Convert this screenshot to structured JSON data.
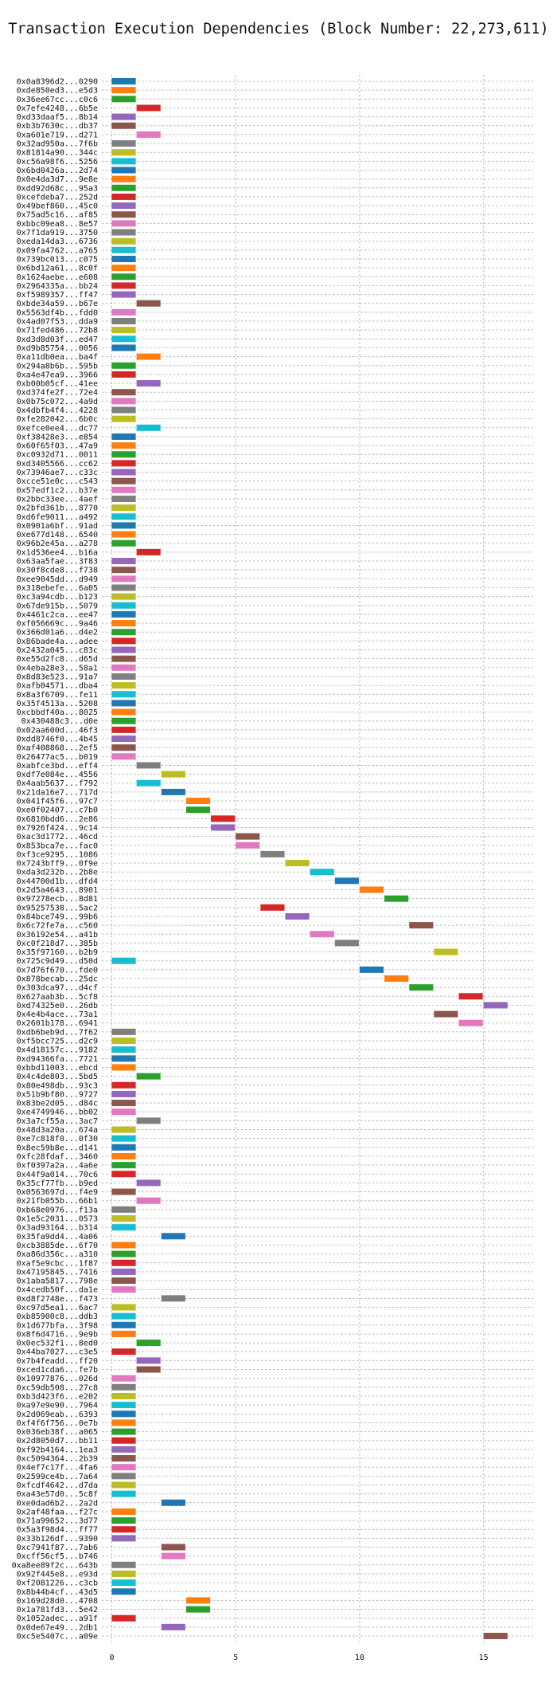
{
  "chart_data": {
    "type": "bar",
    "title": "Transaction Execution Dependencies (Block Number: 22,273,611)",
    "xlabel": "",
    "ylabel": "",
    "xlim": [
      -0.4,
      17
    ],
    "xticks": [
      0,
      5,
      10,
      15
    ],
    "grid": true,
    "palette": [
      "#1f77b4",
      "#ff7f0e",
      "#2ca02c",
      "#d62728",
      "#9467bd",
      "#8c564b",
      "#e377c2",
      "#7f7f7f",
      "#bcbd22",
      "#17becf"
    ],
    "transactions": [
      {
        "label": "0x0a8396d2...0290",
        "start": 0,
        "end": 1
      },
      {
        "label": "0xde850ed3...e5d3",
        "start": 0,
        "end": 1
      },
      {
        "label": "0x36ee67cc...c0c6",
        "start": 0,
        "end": 1
      },
      {
        "label": "0x7efe4248...6b5e",
        "start": 1,
        "end": 2
      },
      {
        "label": "0xd33daaf5...8b14",
        "start": 0,
        "end": 1
      },
      {
        "label": "0xb3b7630c...db37",
        "start": 0,
        "end": 1
      },
      {
        "label": "0xa601e719...d271",
        "start": 1,
        "end": 2
      },
      {
        "label": "0x32ad950a...7f6b",
        "start": 0,
        "end": 1
      },
      {
        "label": "0x81814a90...344c",
        "start": 0,
        "end": 1
      },
      {
        "label": "0xc56a98f6...5256",
        "start": 0,
        "end": 1
      },
      {
        "label": "0x6bd0426a...2d74",
        "start": 0,
        "end": 1
      },
      {
        "label": "0x0e4da3d7...9e8e",
        "start": 0,
        "end": 1
      },
      {
        "label": "0xdd92d68c...95a3",
        "start": 0,
        "end": 1
      },
      {
        "label": "0xcefdeba7...252d",
        "start": 0,
        "end": 1
      },
      {
        "label": "0x49bef860...45c0",
        "start": 0,
        "end": 1
      },
      {
        "label": "0x75ad5c16...af85",
        "start": 0,
        "end": 1
      },
      {
        "label": "0xbbc09ea8...8e57",
        "start": 0,
        "end": 1
      },
      {
        "label": "0x7f1da919...3750",
        "start": 0,
        "end": 1
      },
      {
        "label": "0xeda14da3...6736",
        "start": 0,
        "end": 1
      },
      {
        "label": "0x09fa4762...a765",
        "start": 0,
        "end": 1
      },
      {
        "label": "0x739bc013...c075",
        "start": 0,
        "end": 1
      },
      {
        "label": "0x6bd12a61...8c0f",
        "start": 0,
        "end": 1
      },
      {
        "label": "0x1624aebe...e608",
        "start": 0,
        "end": 1
      },
      {
        "label": "0x2964335a...bb24",
        "start": 0,
        "end": 1
      },
      {
        "label": "0xf5989357...ff47",
        "start": 0,
        "end": 1
      },
      {
        "label": "0xbde34a59...b67e",
        "start": 1,
        "end": 2
      },
      {
        "label": "0x5563df4b...fdd0",
        "start": 0,
        "end": 1
      },
      {
        "label": "0x4ad07f53...dda9",
        "start": 0,
        "end": 1
      },
      {
        "label": "0x71fed486...72b8",
        "start": 0,
        "end": 1
      },
      {
        "label": "0xd3d8d03f...ed47",
        "start": 0,
        "end": 1
      },
      {
        "label": "0xd9b85754...0056",
        "start": 0,
        "end": 1
      },
      {
        "label": "0xa11db0ea...ba4f",
        "start": 1,
        "end": 2
      },
      {
        "label": "0x294a8b6b...595b",
        "start": 0,
        "end": 1
      },
      {
        "label": "0xa4e47ea9...3966",
        "start": 0,
        "end": 1
      },
      {
        "label": "0xb00b05cf...41ee",
        "start": 1,
        "end": 2
      },
      {
        "label": "0xd374fe2f...72e4",
        "start": 0,
        "end": 1
      },
      {
        "label": "0x0b75c072...4a9d",
        "start": 0,
        "end": 1
      },
      {
        "label": "0x4dbfb4f4...4228",
        "start": 0,
        "end": 1
      },
      {
        "label": "0xfe282042...6b0c",
        "start": 0,
        "end": 1
      },
      {
        "label": "0xefce0ee4...dc77",
        "start": 1,
        "end": 2
      },
      {
        "label": "0xf38428e3...e854",
        "start": 0,
        "end": 1
      },
      {
        "label": "0x60f65f03...47a9",
        "start": 0,
        "end": 1
      },
      {
        "label": "0xc0932d71...0011",
        "start": 0,
        "end": 1
      },
      {
        "label": "0xd3405566...cc62",
        "start": 0,
        "end": 1
      },
      {
        "label": "0x73946ae7...c33c",
        "start": 0,
        "end": 1
      },
      {
        "label": "0xcce51e0c...c543",
        "start": 0,
        "end": 1
      },
      {
        "label": "0x57edf1c2...b37e",
        "start": 0,
        "end": 1
      },
      {
        "label": "0x2bbc33ee...4aef",
        "start": 0,
        "end": 1
      },
      {
        "label": "0x2bfd361b...8770",
        "start": 0,
        "end": 1
      },
      {
        "label": "0xd6fe9011...a492",
        "start": 0,
        "end": 1
      },
      {
        "label": "0x0901a6bf...91ad",
        "start": 0,
        "end": 1
      },
      {
        "label": "0xe677d148...6540",
        "start": 0,
        "end": 1
      },
      {
        "label": "0x96b2e45a...a278",
        "start": 0,
        "end": 1
      },
      {
        "label": "0x1d536ee4...b16a",
        "start": 1,
        "end": 2
      },
      {
        "label": "0x63aa5fae...3f83",
        "start": 0,
        "end": 1
      },
      {
        "label": "0x30f8cde8...f738",
        "start": 0,
        "end": 1
      },
      {
        "label": "0xee9045dd...d949",
        "start": 0,
        "end": 1
      },
      {
        "label": "0x318ebefe...6a05",
        "start": 0,
        "end": 1
      },
      {
        "label": "0xc3a94cdb...b123",
        "start": 0,
        "end": 1
      },
      {
        "label": "0x67de915b...5079",
        "start": 0,
        "end": 1
      },
      {
        "label": "0x4461c2ca...ee47",
        "start": 0,
        "end": 1
      },
      {
        "label": "0xf056669c...9a46",
        "start": 0,
        "end": 1
      },
      {
        "label": "0x366d01a6...d4e2",
        "start": 0,
        "end": 1
      },
      {
        "label": "0x86bade4a...adee",
        "start": 0,
        "end": 1
      },
      {
        "label": "0x2432a045...c83c",
        "start": 0,
        "end": 1
      },
      {
        "label": "0xe55d2fc8...d65d",
        "start": 0,
        "end": 1
      },
      {
        "label": "0x4eba28e3...58a1",
        "start": 0,
        "end": 1
      },
      {
        "label": "0x8d83e523...91a7",
        "start": 0,
        "end": 1
      },
      {
        "label": "0xafb04571...dba4",
        "start": 0,
        "end": 1
      },
      {
        "label": "0x8a3f6709...fe11",
        "start": 0,
        "end": 1
      },
      {
        "label": "0x35f4513a...5208",
        "start": 0,
        "end": 1
      },
      {
        "label": "0xcbbdf40a...8025",
        "start": 0,
        "end": 1
      },
      {
        "label": "0x430488c3...d0e",
        "start": 0,
        "end": 1
      },
      {
        "label": "0x02aa600d...46f3",
        "start": 0,
        "end": 1
      },
      {
        "label": "0xdd8746f0...4b45",
        "start": 0,
        "end": 1
      },
      {
        "label": "0xaf408868...2ef5",
        "start": 0,
        "end": 1
      },
      {
        "label": "0x26477ac5...b019",
        "start": 0,
        "end": 1
      },
      {
        "label": "0xabfce3bd...eff4",
        "start": 1,
        "end": 2
      },
      {
        "label": "0xdf7e084e...4556",
        "start": 2,
        "end": 3
      },
      {
        "label": "0x4aab5637...f792",
        "start": 1,
        "end": 2
      },
      {
        "label": "0x21da16e7...717d",
        "start": 2,
        "end": 3
      },
      {
        "label": "0x041f45f6...97c7",
        "start": 3,
        "end": 4
      },
      {
        "label": "0xe0f02407...c7b0",
        "start": 3,
        "end": 4
      },
      {
        "label": "0x6810bdd6...2e86",
        "start": 4,
        "end": 5
      },
      {
        "label": "0x7926f424...9c14",
        "start": 4,
        "end": 5
      },
      {
        "label": "0xac3d1772...46cd",
        "start": 5,
        "end": 6
      },
      {
        "label": "0x853bca7e...fac0",
        "start": 5,
        "end": 6
      },
      {
        "label": "0xf3ce9295...1086",
        "start": 6,
        "end": 7
      },
      {
        "label": "0x7243bff9...0f9e",
        "start": 7,
        "end": 8
      },
      {
        "label": "0xda3d232b...2b8e",
        "start": 8,
        "end": 9
      },
      {
        "label": "0x44700d1b...dfd4",
        "start": 9,
        "end": 10
      },
      {
        "label": "0x2d5a4643...8901",
        "start": 10,
        "end": 11
      },
      {
        "label": "0x97278ecb...8d81",
        "start": 11,
        "end": 12
      },
      {
        "label": "0x95257538...5ac2",
        "start": 6,
        "end": 7
      },
      {
        "label": "0x84bce749...99b6",
        "start": 7,
        "end": 8
      },
      {
        "label": "0x6c72fe7a...c560",
        "start": 12,
        "end": 13
      },
      {
        "label": "0x36192e54...a41b",
        "start": 8,
        "end": 9
      },
      {
        "label": "0xc0f218d7...385b",
        "start": 9,
        "end": 10
      },
      {
        "label": "0x35f97160...b2b9",
        "start": 13,
        "end": 14
      },
      {
        "label": "0x725c9d49...d50d",
        "start": 0,
        "end": 1
      },
      {
        "label": "0x7d76f670...fde0",
        "start": 10,
        "end": 11
      },
      {
        "label": "0x878becab...25dc",
        "start": 11,
        "end": 12
      },
      {
        "label": "0x303dca97...d4cf",
        "start": 12,
        "end": 13
      },
      {
        "label": "0x627aab3b...5cf8",
        "start": 14,
        "end": 15
      },
      {
        "label": "0xd74325e0...26db",
        "start": 15,
        "end": 16
      },
      {
        "label": "0x4e4b4ace...73a1",
        "start": 13,
        "end": 14
      },
      {
        "label": "0x2601b178...6941",
        "start": 14,
        "end": 15
      },
      {
        "label": "0xdb6beb9d...7f62",
        "start": 0,
        "end": 1
      },
      {
        "label": "0xf5bcc725...d2c9",
        "start": 0,
        "end": 1
      },
      {
        "label": "0x4d18157c...9182",
        "start": 0,
        "end": 1
      },
      {
        "label": "0xd94366fa...7721",
        "start": 0,
        "end": 1
      },
      {
        "label": "0xbbd11003...ebcd",
        "start": 0,
        "end": 1
      },
      {
        "label": "0x4c4de803...5bd5",
        "start": 1,
        "end": 2
      },
      {
        "label": "0x80e498db...93c3",
        "start": 0,
        "end": 1
      },
      {
        "label": "0x51b9bf80...9727",
        "start": 0,
        "end": 1
      },
      {
        "label": "0x83be2d05...d84c",
        "start": 0,
        "end": 1
      },
      {
        "label": "0xe4749946...bb02",
        "start": 0,
        "end": 1
      },
      {
        "label": "0x3a7cf55a...3ac7",
        "start": 1,
        "end": 2
      },
      {
        "label": "0x48d3a20a...674a",
        "start": 0,
        "end": 1
      },
      {
        "label": "0xe7c818f0...0f30",
        "start": 0,
        "end": 1
      },
      {
        "label": "0x8ec59b8e...d141",
        "start": 0,
        "end": 1
      },
      {
        "label": "0xfc28fdaf...3460",
        "start": 0,
        "end": 1
      },
      {
        "label": "0xf0397a2a...4a6e",
        "start": 0,
        "end": 1
      },
      {
        "label": "0x44f9a014...70c6",
        "start": 0,
        "end": 1
      },
      {
        "label": "0x35cf77fb...b9ed",
        "start": 1,
        "end": 2
      },
      {
        "label": "0x0563697d...f4e9",
        "start": 0,
        "end": 1
      },
      {
        "label": "0x21fb055b...66b1",
        "start": 1,
        "end": 2
      },
      {
        "label": "0xb68e0976...f13a",
        "start": 0,
        "end": 1
      },
      {
        "label": "0x1e5c2031...0573",
        "start": 0,
        "end": 1
      },
      {
        "label": "0x3ad93164...b314",
        "start": 0,
        "end": 1
      },
      {
        "label": "0x35fa9dd4...4a06",
        "start": 2,
        "end": 3
      },
      {
        "label": "0xcb3885de...6f70",
        "start": 0,
        "end": 1
      },
      {
        "label": "0xa86d356c...a310",
        "start": 0,
        "end": 1
      },
      {
        "label": "0xaf5e9cbc...1f87",
        "start": 0,
        "end": 1
      },
      {
        "label": "0x47195845...7416",
        "start": 0,
        "end": 1
      },
      {
        "label": "0x1aba5817...798e",
        "start": 0,
        "end": 1
      },
      {
        "label": "0x4cedb50f...da1e",
        "start": 0,
        "end": 1
      },
      {
        "label": "0xd8f2748e...f473",
        "start": 2,
        "end": 3
      },
      {
        "label": "0xc97d5ea1...6ac7",
        "start": 0,
        "end": 1
      },
      {
        "label": "0xb85900c8...ddb3",
        "start": 0,
        "end": 1
      },
      {
        "label": "0x1d677bfa...3f98",
        "start": 0,
        "end": 1
      },
      {
        "label": "0x8f6d4716...9e9b",
        "start": 0,
        "end": 1
      },
      {
        "label": "0x0ec532f1...8ed0",
        "start": 1,
        "end": 2
      },
      {
        "label": "0x44ba7027...c3e5",
        "start": 0,
        "end": 1
      },
      {
        "label": "0x7b4feadd...ff20",
        "start": 1,
        "end": 2
      },
      {
        "label": "0xced1cda6...fe7b",
        "start": 1,
        "end": 2
      },
      {
        "label": "0x10977876...026d",
        "start": 0,
        "end": 1
      },
      {
        "label": "0xc59db508...27c8",
        "start": 0,
        "end": 1
      },
      {
        "label": "0xb3d423f6...e202",
        "start": 0,
        "end": 1
      },
      {
        "label": "0xa97e9e90...7964",
        "start": 0,
        "end": 1
      },
      {
        "label": "0x2d069eab...6393",
        "start": 0,
        "end": 1
      },
      {
        "label": "0xf4f6f756...0e7b",
        "start": 0,
        "end": 1
      },
      {
        "label": "0x036eb38f...a065",
        "start": 0,
        "end": 1
      },
      {
        "label": "0x2d8050d7...bb11",
        "start": 0,
        "end": 1
      },
      {
        "label": "0xf92b4164...1ea3",
        "start": 0,
        "end": 1
      },
      {
        "label": "0xc5094364...2b39",
        "start": 0,
        "end": 1
      },
      {
        "label": "0x4ef7c17f...4fa6",
        "start": 0,
        "end": 1
      },
      {
        "label": "0x2599ce4b...7a64",
        "start": 0,
        "end": 1
      },
      {
        "label": "0xfcdf4642...d7da",
        "start": 0,
        "end": 1
      },
      {
        "label": "0xa43e57d0...5c8f",
        "start": 0,
        "end": 1
      },
      {
        "label": "0xe0dad6b2...2a2d",
        "start": 2,
        "end": 3
      },
      {
        "label": "0x2af48faa...f27c",
        "start": 0,
        "end": 1
      },
      {
        "label": "0x71a99652...3d77",
        "start": 0,
        "end": 1
      },
      {
        "label": "0x5a3f98d4...ff77",
        "start": 0,
        "end": 1
      },
      {
        "label": "0x33b126df...9390",
        "start": 0,
        "end": 1
      },
      {
        "label": "0xc7941f87...7ab6",
        "start": 2,
        "end": 3
      },
      {
        "label": "0xcff56cf5...b746",
        "start": 2,
        "end": 3
      },
      {
        "label": "0xa8ee89f2c...643b",
        "start": 0,
        "end": 1
      },
      {
        "label": "0x92f445e8...e93d",
        "start": 0,
        "end": 1
      },
      {
        "label": "0xf2081226...c3cb",
        "start": 0,
        "end": 1
      },
      {
        "label": "0x8b44b4cf...43d5",
        "start": 0,
        "end": 1
      },
      {
        "label": "0x169d28d0...4708",
        "start": 3,
        "end": 4
      },
      {
        "label": "0x1a781fd3...5e42",
        "start": 3,
        "end": 4
      },
      {
        "label": "0x1052adec...a91f",
        "start": 0,
        "end": 1
      },
      {
        "label": "0x0de67e49...2db1",
        "start": 2,
        "end": 3
      },
      {
        "label": "0xc5e5407c...a09e",
        "start": 15,
        "end": 16
      }
    ]
  }
}
